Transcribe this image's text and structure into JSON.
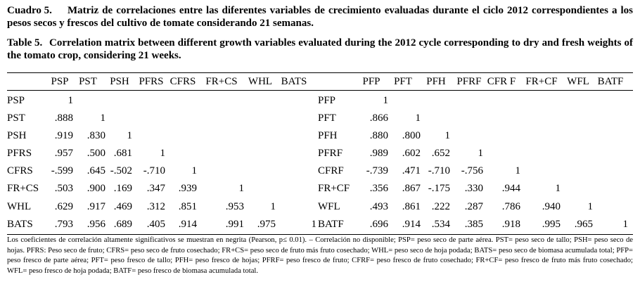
{
  "caption": {
    "es_label": "Cuadro 5.",
    "es_text": "Matriz de correlaciones entre las diferentes variables de crecimiento evaluadas durante el ciclo 2012 correspondientes a los pesos secos y frescos del cultivo de tomate considerando 21 semanas.",
    "en_label": "Table 5.",
    "en_text": "Correlation matrix between different growth variables evaluated during the 2012 cycle corresponding to dry and fresh weights of the tomato crop, considering 21 weeks."
  },
  "table": {
    "left_header": [
      "PSP",
      "PST",
      "PSH",
      "PFRS",
      "CFRS",
      "FR+CS",
      "WHL",
      "BATS"
    ],
    "right_header": [
      "PFP",
      "PFT",
      "PFH",
      "PFRF",
      "CFR F",
      "FR+CF",
      "WFL",
      "BATF"
    ],
    "rows": [
      {
        "left_label": "PSP",
        "left_values": [
          "1"
        ],
        "right_label": "PFP",
        "right_values": [
          "1"
        ]
      },
      {
        "left_label": "PST",
        "left_values": [
          ".888",
          "1"
        ],
        "right_label": "PFT",
        "right_values": [
          ".866",
          "1"
        ]
      },
      {
        "left_label": "PSH",
        "left_values": [
          ".919",
          ".830",
          "1"
        ],
        "right_label": "PFH",
        "right_values": [
          ".880",
          ".800",
          "1"
        ]
      },
      {
        "left_label": "PFRS",
        "left_values": [
          ".957",
          ".500",
          ".681",
          "1"
        ],
        "right_label": "PFRF",
        "right_values": [
          ".989",
          ".602",
          ".652",
          "1"
        ]
      },
      {
        "left_label": "CFRS",
        "left_values": [
          "-.599",
          ".645",
          "-.502",
          "-.710",
          "1"
        ],
        "right_label": "CFRF",
        "right_values": [
          "-.739",
          ".471",
          "-.710",
          "-.756",
          "1"
        ]
      },
      {
        "left_label": "FR+CS",
        "left_values": [
          ".503",
          ".900",
          ".169",
          ".347",
          ".939",
          "1"
        ],
        "right_label": "FR+CF",
        "right_values": [
          ".356",
          ".867",
          "-.175",
          ".330",
          ".944",
          "1"
        ]
      },
      {
        "left_label": "WHL",
        "left_values": [
          ".629",
          ".917",
          ".469",
          ".312",
          ".851",
          ".953",
          "1"
        ],
        "right_label": "WFL",
        "right_values": [
          ".493",
          ".861",
          ".222",
          ".287",
          ".786",
          ".940",
          "1"
        ]
      },
      {
        "left_label": "BATS",
        "left_values": [
          ".793",
          ".956",
          ".689",
          ".405",
          ".914",
          ".991",
          ".975",
          "1"
        ],
        "right_label": "BATF",
        "right_values": [
          ".696",
          ".914",
          ".534",
          ".385",
          ".918",
          ".995",
          ".965",
          "1"
        ]
      }
    ]
  },
  "footnote": "Los coeficientes de correlación altamente significativos se muestran en negrita (Pearson, p≤ 0.01). – Correlación no disponible; PSP= peso seco de parte aérea. PST= peso seco de tallo; PSH= peso seco de hojas. PFRS: Peso seco de fruto; CFRS= peso seco de fruto cosechado; FR+CS= peso seco de fruto más fruto cosechado; WHL= peso seco de hoja podada; BATS= peso seco de biomasa acumulada total; PFP= peso fresco de parte aérea; PFT= peso fresco de tallo; PFH= peso fresco de hojas; PFRF= peso fresco de fruto; CFRF= peso fresco de fruto cosechado; FR+CF= peso fresco de fruto más fruto cosechado; WFL= peso fresco de hoja podada; BATF= peso fresco de biomasa acumulada total."
}
